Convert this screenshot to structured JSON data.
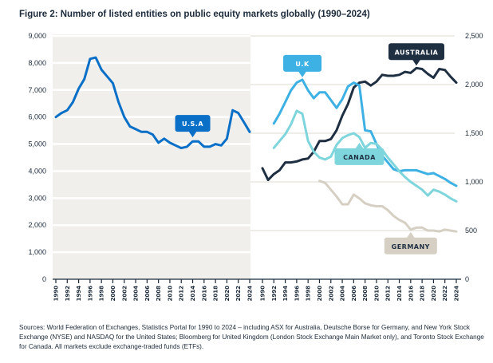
{
  "title": "Figure 2: Number of listed entities on public equity markets globally (1990–2024)",
  "source": "Sources: World Federation of Exchanges, Statistics Portal for 1990 to 2024 – including ASX for Australia, Deutsche Borse for Germany, and New York Stock Exchange (NYSE) and NASDAQ for the United States; Bloomberg for United Kingdom (London Stock Exchange Main Market only), and Toronto Stock Exchange for Canada. All markets exclude exchange-traded funds (ETFs).",
  "colors": {
    "usa": "#0a6fc7",
    "uk": "#3db0e4",
    "australia": "#1f2f42",
    "canada": "#7fd5dc",
    "germany": "#d6d0c4",
    "left_panel_bg": "#f0efeb",
    "gridline": "#ffffff",
    "right_gridline": "#eeede8",
    "axis": "#1b2a3a"
  },
  "chart_data": [
    {
      "type": "line",
      "panel": "left",
      "title": "",
      "xlabel": "",
      "ylabel": "",
      "x_ticks": [
        "1990",
        "1992",
        "1994",
        "1996",
        "1998",
        "2000",
        "2002",
        "2004",
        "2006",
        "2008",
        "2010",
        "2012",
        "2014",
        "2016",
        "2018",
        "2020",
        "2022",
        "2024"
      ],
      "y_ticks": [
        "0",
        "1,000",
        "2,000",
        "3,000",
        "4,000",
        "5,000",
        "6,000",
        "7,000",
        "8,000",
        "9,000"
      ],
      "y_tick_values": [
        0,
        1000,
        2000,
        3000,
        4000,
        5000,
        6000,
        7000,
        8000,
        9000
      ],
      "xlim": [
        1990,
        2024
      ],
      "ylim": [
        0,
        9000
      ],
      "grid": true,
      "series": [
        {
          "name": "U.S.A",
          "key": "usa",
          "x": [
            1990,
            1991,
            1992,
            1993,
            1994,
            1995,
            1996,
            1997,
            1998,
            1999,
            2000,
            2001,
            2002,
            2003,
            2004,
            2005,
            2006,
            2007,
            2008,
            2009,
            2010,
            2011,
            2012,
            2013,
            2014,
            2015,
            2016,
            2017,
            2018,
            2019,
            2020,
            2021,
            2022,
            2023,
            2024
          ],
          "values": [
            6000,
            6150,
            6250,
            6550,
            7050,
            7400,
            8150,
            8200,
            7750,
            7500,
            7250,
            6550,
            6000,
            5650,
            5550,
            5450,
            5450,
            5350,
            5050,
            5200,
            5050,
            4950,
            4850,
            4900,
            5100,
            5100,
            4900,
            4900,
            5000,
            4950,
            5200,
            6250,
            6150,
            5800,
            5450
          ],
          "callout": {
            "label": "U.S.A",
            "anchor_year": 2014,
            "position": "above"
          }
        }
      ]
    },
    {
      "type": "line",
      "panel": "right",
      "title": "",
      "xlabel": "",
      "ylabel": "",
      "x_ticks": [
        "1990",
        "1992",
        "1994",
        "1996",
        "1998",
        "2000",
        "2002",
        "2004",
        "2006",
        "2008",
        "2010",
        "2012",
        "2014",
        "2016",
        "2018",
        "2020",
        "2022",
        "2024"
      ],
      "y_ticks": [
        "0",
        "500",
        "1,000",
        "1,500",
        "2,000",
        "2,500"
      ],
      "y_tick_values": [
        0,
        500,
        1000,
        1500,
        2000,
        2500
      ],
      "xlim": [
        1990,
        2024
      ],
      "ylim": [
        0,
        2500
      ],
      "grid": true,
      "series": [
        {
          "name": "AUSTRALIA",
          "key": "australia",
          "x": [
            1990,
            1991,
            1992,
            1993,
            1994,
            1995,
            1996,
            1997,
            1998,
            1999,
            2000,
            2001,
            2002,
            2003,
            2004,
            2005,
            2006,
            2007,
            2008,
            2009,
            2010,
            2011,
            2012,
            2013,
            2014,
            2015,
            2016,
            2017,
            2018,
            2019,
            2020,
            2021,
            2022,
            2023,
            2024
          ],
          "values": [
            1140,
            1020,
            1080,
            1120,
            1200,
            1200,
            1210,
            1230,
            1240,
            1310,
            1420,
            1420,
            1440,
            1530,
            1680,
            1800,
            1970,
            2020,
            2030,
            1990,
            2030,
            2100,
            2090,
            2090,
            2100,
            2130,
            2120,
            2170,
            2160,
            2110,
            2070,
            2160,
            2150,
            2080,
            2020
          ],
          "callout": {
            "label": "AUSTRALIA",
            "anchor_year": 2017,
            "position": "above"
          }
        },
        {
          "name": "U.K",
          "key": "uk",
          "x": [
            1992,
            1993,
            1994,
            1995,
            1996,
            1997,
            1998,
            1999,
            2000,
            2001,
            2002,
            2003,
            2004,
            2005,
            2006,
            2007,
            2008,
            2009,
            2010,
            2011,
            2012,
            2013,
            2014,
            2015,
            2016,
            2017,
            2018,
            2019,
            2020,
            2021,
            2022,
            2023,
            2024
          ],
          "values": [
            1600,
            1700,
            1820,
            1940,
            2020,
            2050,
            1940,
            1860,
            1920,
            1920,
            1840,
            1760,
            1850,
            1980,
            2020,
            1990,
            1530,
            1520,
            1390,
            1270,
            1200,
            1130,
            1110,
            1120,
            1120,
            1120,
            1100,
            1080,
            1090,
            1060,
            1030,
            990,
            960
          ],
          "callout": {
            "label": "U.K",
            "anchor_year": 1997,
            "position": "above"
          }
        },
        {
          "name": "CANADA",
          "key": "canada",
          "x": [
            1992,
            1993,
            1994,
            1995,
            1996,
            1997,
            1998,
            1999,
            2000,
            2001,
            2002,
            2003,
            2004,
            2005,
            2006,
            2007,
            2008,
            2009,
            2010,
            2011,
            2012,
            2013,
            2014,
            2015,
            2016,
            2017,
            2018,
            2019,
            2020,
            2021,
            2022,
            2023,
            2024
          ],
          "values": [
            1350,
            1420,
            1490,
            1590,
            1730,
            1700,
            1420,
            1310,
            1250,
            1230,
            1260,
            1380,
            1450,
            1480,
            1500,
            1460,
            1350,
            1400,
            1390,
            1330,
            1250,
            1180,
            1110,
            1050,
            1000,
            960,
            920,
            860,
            920,
            900,
            870,
            830,
            800
          ],
          "callout": {
            "label": "CANADA",
            "anchor_year": 2007,
            "position": "below"
          }
        },
        {
          "name": "GERMANY",
          "key": "germany",
          "x": [
            2000,
            2001,
            2002,
            2003,
            2004,
            2005,
            2006,
            2007,
            2008,
            2009,
            2010,
            2011,
            2012,
            2013,
            2014,
            2015,
            2016,
            2017,
            2018,
            2019,
            2020,
            2021,
            2022,
            2023,
            2024
          ],
          "values": [
            1010,
            990,
            920,
            850,
            770,
            770,
            870,
            830,
            780,
            760,
            750,
            750,
            710,
            650,
            610,
            580,
            510,
            530,
            530,
            500,
            500,
            490,
            510,
            500,
            490
          ],
          "callout": {
            "label": "GERMANY",
            "anchor_year": 2016,
            "position": "below"
          }
        }
      ]
    }
  ]
}
